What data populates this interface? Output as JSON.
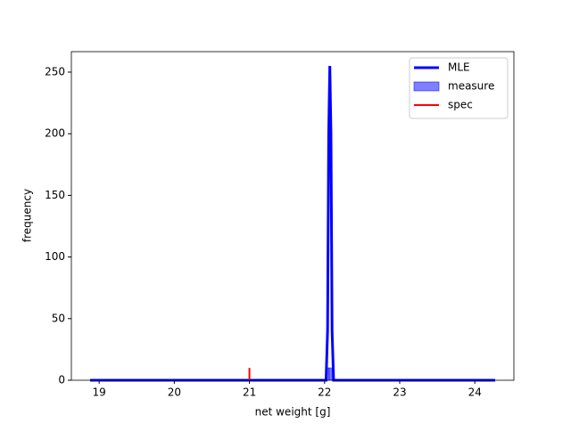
{
  "chart_data": {
    "type": "line",
    "xlabel": "net weight [g]",
    "ylabel": "frequency",
    "xlim": [
      18.63,
      24.52
    ],
    "ylim": [
      0,
      266.6
    ],
    "xticks": [
      19,
      20,
      21,
      22,
      23,
      24
    ],
    "yticks": [
      0,
      50,
      100,
      150,
      200,
      250
    ],
    "legend": "upper right",
    "series": [
      {
        "name": "MLE",
        "color": "#0000ff",
        "x": [
          18.88,
          22.02,
          22.04,
          22.055,
          22.07,
          22.085,
          22.1,
          22.12,
          24.27
        ],
        "values": [
          0,
          0,
          40,
          200,
          255,
          200,
          40,
          0,
          0
        ]
      },
      {
        "name": "measure",
        "color": "#0000ff",
        "bins": [
          22.02,
          22.06,
          22.1
        ],
        "values": [
          10,
          10
        ]
      },
      {
        "name": "spec",
        "color": "#ff0000",
        "x": [
          21,
          21
        ],
        "values": [
          0,
          10
        ]
      }
    ]
  }
}
